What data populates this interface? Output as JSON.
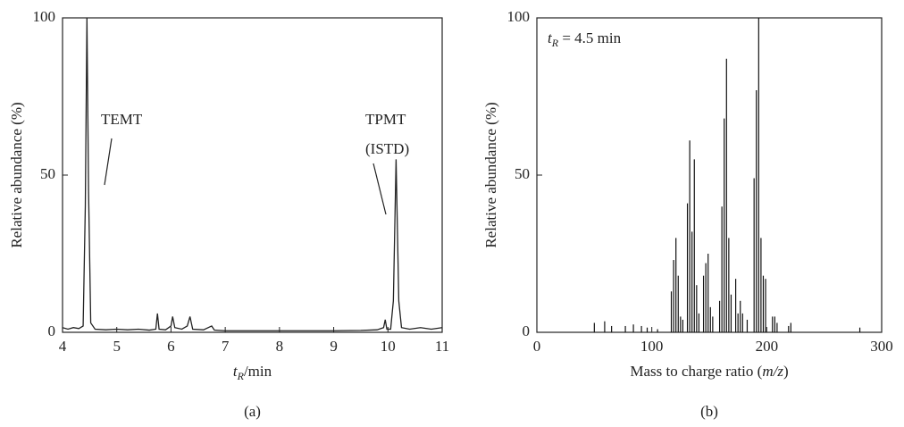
{
  "chart_data": [
    {
      "type": "line",
      "panel_label": "(a)",
      "x_label_parts": [
        "t",
        "R",
        "/min"
      ],
      "y_label": "Relative abundance (%)",
      "annotations": [
        "TEMT",
        "TPMT",
        "(ISTD)"
      ],
      "xlim": [
        4,
        11
      ],
      "ylim": [
        0,
        100
      ],
      "xticks": [
        4,
        5,
        6,
        7,
        8,
        9,
        10,
        11
      ],
      "yticks": [
        0,
        50,
        100
      ],
      "color": "#222222",
      "x": [
        4.0,
        4.1,
        4.2,
        4.3,
        4.38,
        4.42,
        4.45,
        4.48,
        4.52,
        4.6,
        4.8,
        5.0,
        5.2,
        5.4,
        5.6,
        5.72,
        5.75,
        5.78,
        5.9,
        6.0,
        6.03,
        6.07,
        6.2,
        6.3,
        6.35,
        6.4,
        6.6,
        6.75,
        6.8,
        7.0,
        7.5,
        8.0,
        8.5,
        9.0,
        9.5,
        9.8,
        9.92,
        9.95,
        9.98,
        10.05,
        10.1,
        10.15,
        10.2,
        10.25,
        10.4,
        10.6,
        10.8,
        11.0
      ],
      "values": [
        1.5,
        1,
        1.5,
        1.2,
        2,
        40,
        100,
        45,
        3,
        1,
        0.8,
        1,
        0.8,
        1,
        0.7,
        1,
        6,
        1,
        0.8,
        2,
        5,
        1.5,
        1,
        2,
        5,
        1,
        0.8,
        2,
        0.7,
        0.5,
        0.5,
        0.5,
        0.5,
        0.5,
        0.6,
        0.8,
        1.5,
        4,
        1,
        1,
        10,
        55,
        10,
        1.5,
        1,
        1.5,
        1,
        1.5
      ]
    },
    {
      "type": "bar",
      "panel_label": "(b)",
      "x_label_parts": [
        "Mass to charge ratio (",
        "m/z",
        ")"
      ],
      "y_label": "Relative abundance (%)",
      "annotation_parts": [
        "t",
        "R",
        " = 4.5 min"
      ],
      "xlim": [
        0,
        300
      ],
      "ylim": [
        0,
        100
      ],
      "xticks": [
        0,
        100,
        200,
        300
      ],
      "yticks": [
        0,
        50,
        100
      ],
      "color": "#111111",
      "x": [
        50,
        59,
        65,
        77,
        84,
        91,
        96,
        105,
        117,
        119,
        121,
        123,
        125,
        127,
        131,
        133,
        135,
        137,
        139,
        141,
        145,
        147,
        149,
        151,
        153,
        159,
        161,
        163,
        165,
        167,
        169,
        173,
        175,
        177,
        179,
        183,
        189,
        191,
        193,
        195,
        197,
        199,
        205,
        207,
        209,
        219,
        221,
        281
      ],
      "values": [
        3,
        3.5,
        2,
        2,
        2.5,
        2,
        1.5,
        1,
        13,
        23,
        30,
        18,
        5,
        4,
        41,
        61,
        32,
        55,
        15,
        6,
        18,
        22,
        25,
        8,
        5,
        10,
        40,
        68,
        87,
        30,
        12,
        17,
        6,
        10,
        6,
        4,
        49,
        77,
        100,
        30,
        18,
        17,
        5,
        5,
        3,
        2,
        3,
        1.5
      ]
    }
  ]
}
